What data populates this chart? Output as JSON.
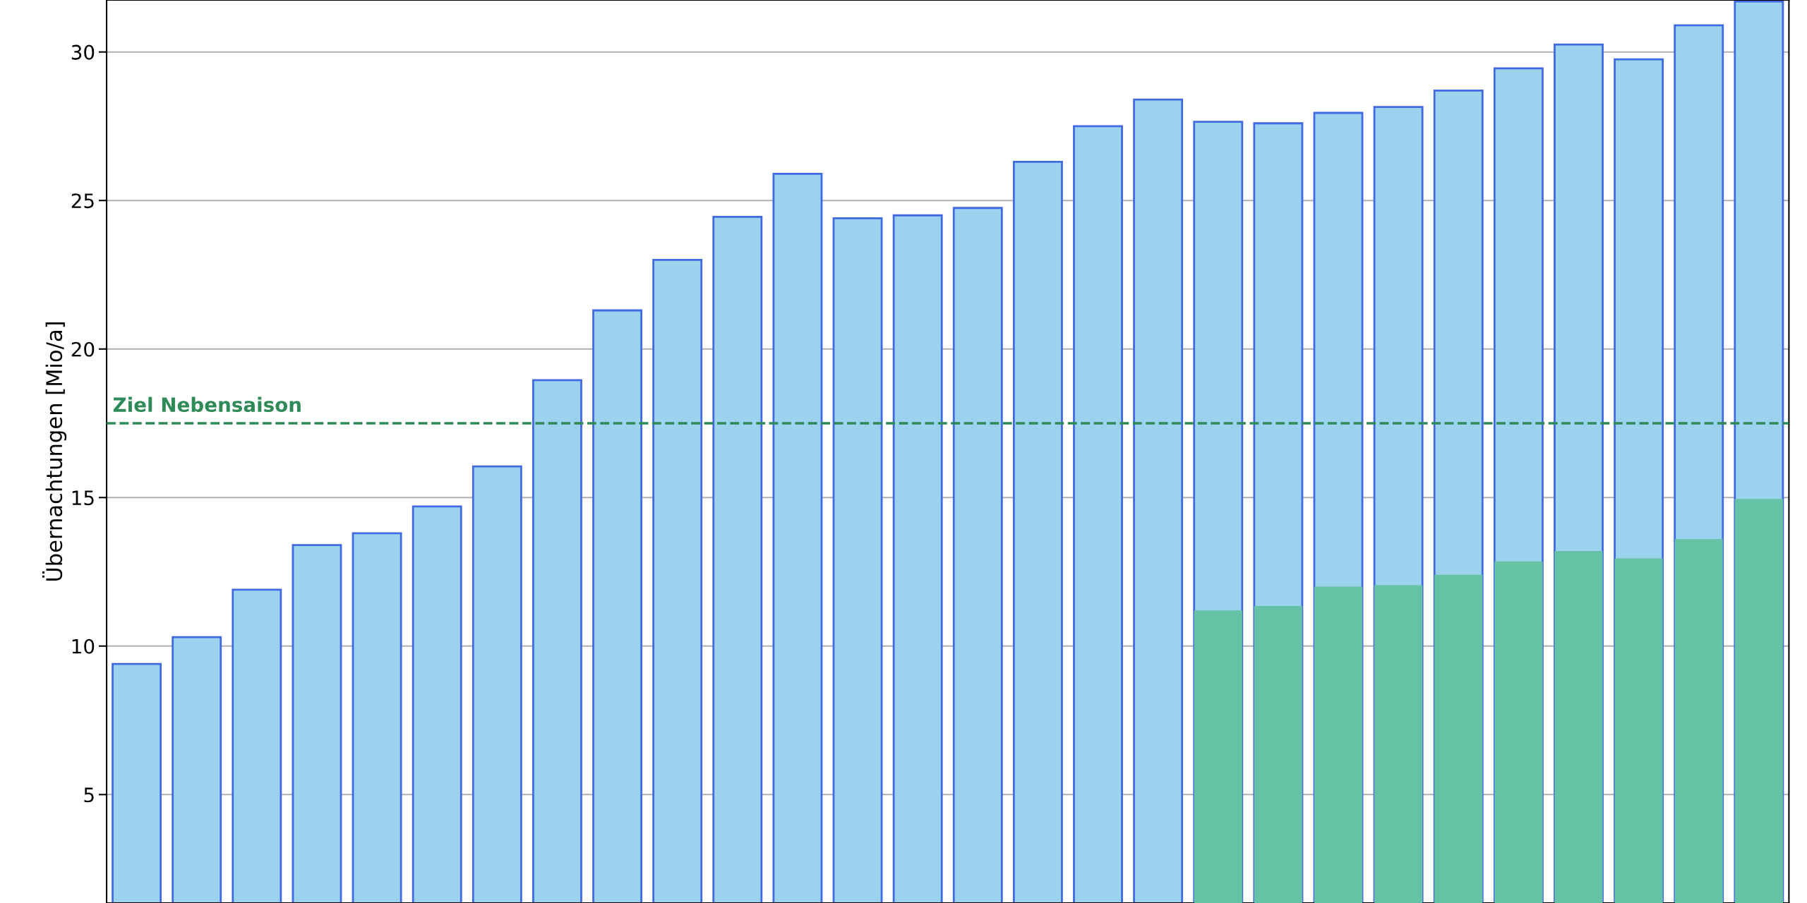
{
  "chart_data": {
    "type": "bar",
    "ylabel": "Übernachtungen [Mio/a]",
    "categories": [
      null,
      null,
      null,
      null,
      null,
      null,
      null,
      null,
      null,
      null,
      null,
      null,
      null,
      null,
      null,
      null,
      null,
      null,
      null,
      null,
      null,
      null,
      null,
      null,
      null,
      null,
      null,
      null
    ],
    "series": [
      {
        "color": "#9bd3ee",
        "values": [
          9.4,
          10.3,
          11.9,
          13.4,
          13.8,
          14.7,
          16.05,
          18.95,
          21.3,
          23.0,
          24.45,
          25.9,
          24.4,
          24.5,
          24.75,
          26.3,
          27.5,
          28.4,
          27.65,
          27.6,
          27.95,
          28.15,
          28.7,
          29.45,
          30.25,
          29.75,
          30.9,
          31.7
        ]
      },
      {
        "color": "#66c2a5",
        "values": [
          null,
          null,
          null,
          null,
          null,
          null,
          null,
          null,
          null,
          null,
          null,
          null,
          null,
          null,
          null,
          null,
          null,
          null,
          11.2,
          11.35,
          12.0,
          12.05,
          12.4,
          12.85,
          13.2,
          12.95,
          13.6,
          14.95
        ]
      }
    ],
    "ylim": [
      1.35,
      31.75
    ],
    "yticks": [
      5,
      10,
      15,
      20,
      25,
      30
    ],
    "grid": "y",
    "tick_labels": "y",
    "ref_lines": [
      {
        "axis": "y",
        "value": 17.5,
        "label": "Ziel Nebensaison",
        "color": "#2e8b57",
        "line_style": "dashed"
      }
    ]
  }
}
